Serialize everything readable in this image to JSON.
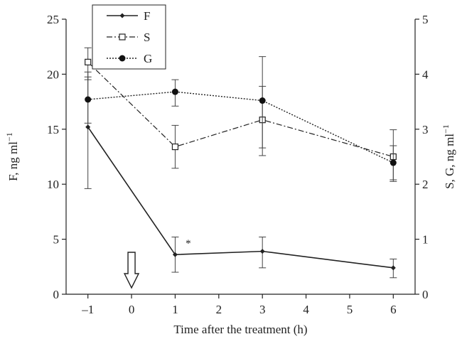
{
  "chart_data": {
    "type": "line",
    "x": [
      -1,
      1,
      3,
      6
    ],
    "xlabel": "Time after the treatment (h)",
    "ylabel_left": "F, ng ml",
    "ylabel_left_sup": "−1",
    "ylabel_right": "S, G, ng ml",
    "ylabel_right_sup": "−1",
    "xlim": [
      -1.5,
      6.5
    ],
    "ylim_left": [
      0,
      25
    ],
    "ylim_right": [
      0,
      5
    ],
    "xticks": [
      -1,
      0,
      1,
      2,
      3,
      4,
      5,
      6
    ],
    "xtick_labels": [
      "–1",
      "0",
      "1",
      "2",
      "3",
      "4",
      "5",
      "6"
    ],
    "yticks_left": [
      0,
      5,
      10,
      15,
      20,
      25
    ],
    "yticks_right": [
      0,
      1,
      2,
      3,
      4,
      5
    ],
    "legend_position": "top-left",
    "series": [
      {
        "name": "F",
        "axis": "left",
        "style": "solid",
        "marker": "small-filled-diamond",
        "values": [
          15.2,
          3.6,
          3.9,
          2.4
        ],
        "err_low": [
          9.6,
          2.0,
          2.4,
          1.5
        ],
        "err_high": [
          20.2,
          5.2,
          5.2,
          3.2
        ]
      },
      {
        "name": "S",
        "axis": "right",
        "style": "dash-dot",
        "marker": "open-square",
        "values": [
          4.22,
          2.68,
          3.17,
          2.5
        ],
        "err_low": [
          3.9,
          2.29,
          2.52,
          2.05
        ],
        "err_high": [
          4.48,
          3.07,
          3.78,
          2.99
        ]
      },
      {
        "name": "G",
        "axis": "right",
        "style": "dotted",
        "marker": "filled-circle",
        "values": [
          3.54,
          3.68,
          3.52,
          2.39
        ],
        "err_low": [
          3.11,
          3.42,
          2.66,
          2.08
        ],
        "err_high": [
          3.95,
          3.9,
          4.32,
          2.7
        ]
      }
    ],
    "annotations": [
      {
        "text": "*",
        "x": 1.3,
        "y_left": 4.7
      },
      {
        "symbol": "down-arrow",
        "x": 0
      }
    ]
  }
}
